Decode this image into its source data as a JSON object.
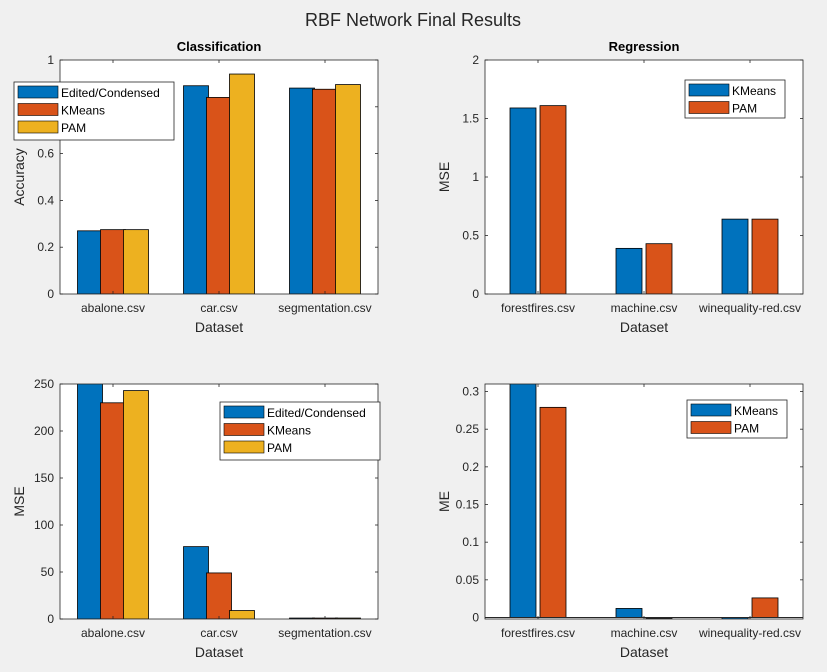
{
  "figure": {
    "title": "RBF Network Final Results"
  },
  "colors": {
    "blue": "#0072BD",
    "orange": "#D95319",
    "yellow": "#EDB120",
    "background": "#F0F0F0",
    "axes_bg": "#FFFFFF"
  },
  "chart_data": [
    {
      "type": "bar",
      "title": "Classification",
      "xlabel": "Dataset",
      "ylabel": "Accuracy",
      "categories": [
        "abalone.csv",
        "car.csv",
        "segmentation.csv"
      ],
      "ylim": [
        0,
        1
      ],
      "yticks": [
        0,
        0.2,
        0.4,
        0.6,
        0.8,
        1
      ],
      "ytick_labels": [
        "0",
        "0.2",
        "0.4",
        "0.6",
        "0.8",
        "1"
      ],
      "legend_position": "top-left",
      "series": [
        {
          "name": "Edited/Condensed",
          "color": "blue",
          "values": [
            0.27,
            0.89,
            0.88
          ]
        },
        {
          "name": "KMeans",
          "color": "orange",
          "values": [
            0.275,
            0.84,
            0.875
          ]
        },
        {
          "name": "PAM",
          "color": "yellow",
          "values": [
            0.275,
            0.94,
            0.895
          ]
        }
      ]
    },
    {
      "type": "bar",
      "title": "Regression",
      "xlabel": "Dataset",
      "ylabel": "MSE",
      "categories": [
        "forestfires.csv",
        "machine.csv",
        "winequality-red.csv"
      ],
      "ylim": [
        0,
        2
      ],
      "yticks": [
        0,
        0.5,
        1,
        1.5,
        2
      ],
      "ytick_labels": [
        "0",
        "0.5",
        "1",
        "1.5",
        "2"
      ],
      "legend_position": "top-right",
      "series": [
        {
          "name": "KMeans",
          "color": "blue",
          "values": [
            1.59,
            0.39,
            0.64
          ]
        },
        {
          "name": "PAM",
          "color": "orange",
          "values": [
            1.61,
            0.43,
            0.64
          ]
        }
      ]
    },
    {
      "type": "bar",
      "title": "",
      "xlabel": "Dataset",
      "ylabel": "MSE",
      "categories": [
        "abalone.csv",
        "car.csv",
        "segmentation.csv"
      ],
      "ylim": [
        0,
        250
      ],
      "yticks": [
        0,
        50,
        100,
        150,
        200,
        250
      ],
      "ytick_labels": [
        "0",
        "50",
        "100",
        "150",
        "200",
        "250"
      ],
      "legend_position": "top-right",
      "series": [
        {
          "name": "Edited/Condensed",
          "color": "blue",
          "values": [
            255,
            77,
            1.0
          ]
        },
        {
          "name": "KMeans",
          "color": "orange",
          "values": [
            230,
            49,
            1.0
          ]
        },
        {
          "name": "PAM",
          "color": "yellow",
          "values": [
            243,
            9,
            1.0
          ]
        }
      ]
    },
    {
      "type": "bar",
      "title": "",
      "xlabel": "Dataset",
      "ylabel": "ME",
      "categories": [
        "forestfires.csv",
        "machine.csv",
        "winequality-red.csv"
      ],
      "ylim": [
        -0.002,
        0.31
      ],
      "yticks": [
        0,
        0.05,
        0.1,
        0.15,
        0.2,
        0.25,
        0.3
      ],
      "ytick_labels": [
        "0",
        "0.05",
        "0.1",
        "0.15",
        "0.2",
        "0.25",
        "0.3"
      ],
      "legend_position": "top-right",
      "series": [
        {
          "name": "KMeans",
          "color": "blue",
          "values": [
            0.32,
            0.012,
            -0.002
          ]
        },
        {
          "name": "PAM",
          "color": "orange",
          "values": [
            0.279,
            -0.001,
            0.026
          ]
        }
      ]
    }
  ]
}
